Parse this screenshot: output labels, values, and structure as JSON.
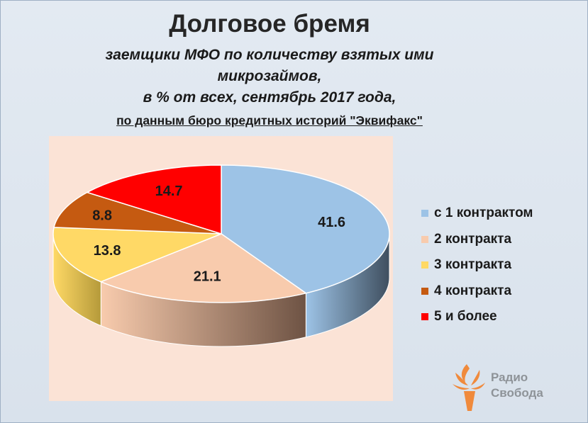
{
  "header": {
    "title": "Долговое бремя",
    "subtitle_line1": "заемщики МФО по количеству взятых ими",
    "subtitle_line2": "микрозаймов,",
    "subtitle_line3": "в % от всех, сентябрь 2017 года,",
    "source": "по данным бюро кредитных историй \"Эквифакс\""
  },
  "chart_data": {
    "type": "pie",
    "title": "Долговое бремя",
    "categories": [
      "с 1 контрактом",
      "2 контракта",
      "3 контракта",
      "4 контракта",
      "5 и более"
    ],
    "values": [
      41.6,
      21.1,
      13.8,
      8.8,
      14.7
    ],
    "value_labels": [
      "41.6",
      "21.1",
      "13.8",
      "8.8",
      "14.7"
    ],
    "colors": [
      "#9dc3e6",
      "#f8cbad",
      "#ffd966",
      "#c55a11",
      "#ff0000"
    ],
    "side_colors": [
      "#3f4f5f",
      "#6e5344",
      "#b59a3a",
      "#7d3a0b",
      "#a00000"
    ],
    "legend_position": "right",
    "style": "3d-pie"
  },
  "legend": {
    "items": [
      {
        "label": "с 1 контрактом",
        "color": "#9dc3e6"
      },
      {
        "label": "2 контракта",
        "color": "#f8cbad"
      },
      {
        "label": "3 контракта",
        "color": "#ffd966"
      },
      {
        "label": "4 контракта",
        "color": "#c55a11"
      },
      {
        "label": "5 и более",
        "color": "#ff0000"
      }
    ]
  },
  "logo": {
    "line1": "Радио",
    "line2": "Свобода",
    "icon": "torch-icon",
    "color": "#f08a3c"
  }
}
